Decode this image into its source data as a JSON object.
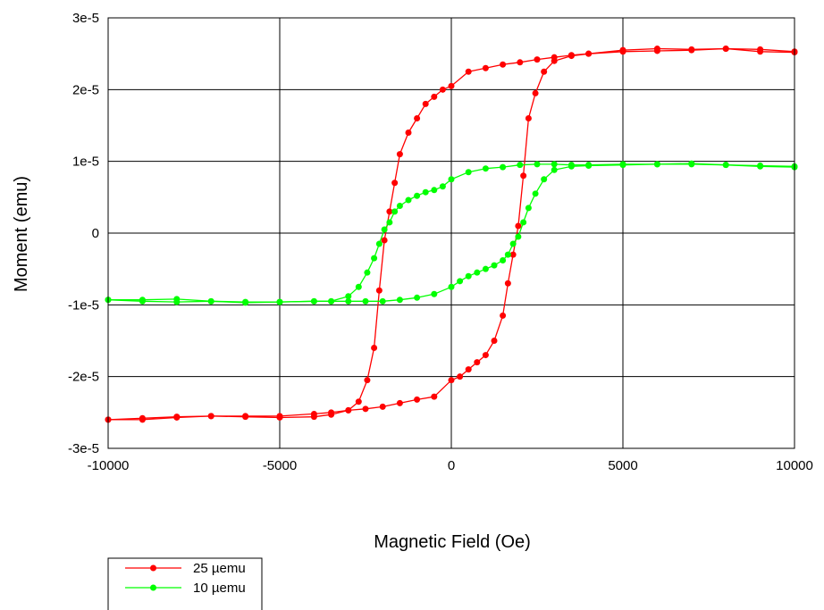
{
  "chart_data": {
    "type": "line",
    "title": "",
    "xlabel": "Magnetic Field (Oe)",
    "ylabel": "Moment (emu)",
    "xlim": [
      -10000,
      10000
    ],
    "ylim": [
      -3e-05,
      3e-05
    ],
    "x_ticks": [
      -10000,
      -5000,
      0,
      5000,
      10000
    ],
    "x_tick_labels": [
      "-10000",
      "-5000",
      "0",
      "5000",
      "10000"
    ],
    "y_ticks": [
      -3e-05,
      -2e-05,
      -1e-05,
      0,
      1e-05,
      2e-05,
      3e-05
    ],
    "y_tick_labels": [
      "-3e-5",
      "-2e-5",
      "-1e-5",
      "0",
      "1e-5",
      "2e-5",
      "3e-5"
    ],
    "grid": true,
    "legend_position": "below-left",
    "series": [
      {
        "name": "25 µemu",
        "color": "#ff0000",
        "descending": {
          "x": [
            10000,
            9000,
            8000,
            7000,
            6000,
            5000,
            4000,
            3500,
            3000,
            2500,
            2000,
            1500,
            1000,
            500,
            0,
            -250,
            -500,
            -750,
            -1000,
            -1250,
            -1500,
            -1650,
            -1800,
            -1950,
            -2100,
            -2250,
            -2450,
            -2700,
            -3000,
            -3500,
            -4000,
            -5000,
            -6000,
            -7000,
            -8000,
            -9000,
            -10000
          ],
          "y": [
            2.53e-05,
            2.56e-05,
            2.57e-05,
            2.55e-05,
            2.54e-05,
            2.53e-05,
            2.5e-05,
            2.48e-05,
            2.45e-05,
            2.42e-05,
            2.38e-05,
            2.35e-05,
            2.3e-05,
            2.25e-05,
            2.05e-05,
            2e-05,
            1.9e-05,
            1.8e-05,
            1.6e-05,
            1.4e-05,
            1.1e-05,
            7e-06,
            3e-06,
            -1e-06,
            -8e-06,
            -1.6e-05,
            -2.05e-05,
            -2.35e-05,
            -2.47e-05,
            -2.53e-05,
            -2.56e-05,
            -2.57e-05,
            -2.56e-05,
            -2.55e-05,
            -2.57e-05,
            -2.6e-05,
            -2.6e-05
          ]
        },
        "ascending": {
          "x": [
            -10000,
            -9000,
            -8000,
            -7000,
            -6000,
            -5000,
            -4000,
            -3500,
            -3000,
            -2500,
            -2000,
            -1500,
            -1000,
            -500,
            0,
            250,
            500,
            750,
            1000,
            1250,
            1500,
            1650,
            1800,
            1950,
            2100,
            2250,
            2450,
            2700,
            3000,
            3500,
            4000,
            5000,
            6000,
            7000,
            8000,
            9000,
            10000
          ],
          "y": [
            -2.6e-05,
            -2.58e-05,
            -2.56e-05,
            -2.55e-05,
            -2.55e-05,
            -2.55e-05,
            -2.52e-05,
            -2.5e-05,
            -2.47e-05,
            -2.45e-05,
            -2.42e-05,
            -2.37e-05,
            -2.32e-05,
            -2.28e-05,
            -2.05e-05,
            -2e-05,
            -1.9e-05,
            -1.8e-05,
            -1.7e-05,
            -1.5e-05,
            -1.15e-05,
            -7e-06,
            -3e-06,
            1e-06,
            8e-06,
            1.6e-05,
            1.95e-05,
            2.25e-05,
            2.4e-05,
            2.47e-05,
            2.5e-05,
            2.55e-05,
            2.57e-05,
            2.56e-05,
            2.57e-05,
            2.53e-05,
            2.52e-05
          ]
        }
      },
      {
        "name": "10 µemu",
        "color": "#00ff00",
        "descending": {
          "x": [
            10000,
            9000,
            8000,
            7000,
            6000,
            5000,
            4000,
            3500,
            3000,
            2500,
            2000,
            1500,
            1000,
            500,
            0,
            -250,
            -500,
            -750,
            -1000,
            -1250,
            -1500,
            -1650,
            -1800,
            -1950,
            -2100,
            -2250,
            -2450,
            -2700,
            -3000,
            -3500,
            -4000,
            -5000,
            -6000,
            -7000,
            -8000,
            -9000,
            -10000
          ],
          "y": [
            9.2e-06,
            9.3e-06,
            9.5e-06,
            9.7e-06,
            9.6e-06,
            9.6e-06,
            9.5e-06,
            9.5e-06,
            9.6e-06,
            9.6e-06,
            9.5e-06,
            9.2e-06,
            9e-06,
            8.5e-06,
            7.5e-06,
            6.5e-06,
            6e-06,
            5.7e-06,
            5.2e-06,
            4.6e-06,
            3.8e-06,
            3e-06,
            1.5e-06,
            5e-07,
            -1.5e-06,
            -3.5e-06,
            -5.5e-06,
            -7.5e-06,
            -8.8e-06,
            -9.5e-06,
            -9.5e-06,
            -9.6e-06,
            -9.7e-06,
            -9.5e-06,
            -9.2e-06,
            -9.3e-06,
            -9.3e-06
          ]
        },
        "ascending": {
          "x": [
            -10000,
            -9000,
            -8000,
            -7000,
            -6000,
            -5000,
            -4000,
            -3500,
            -3000,
            -2500,
            -2000,
            -1500,
            -1000,
            -500,
            0,
            250,
            500,
            750,
            1000,
            1250,
            1500,
            1650,
            1800,
            1950,
            2100,
            2250,
            2450,
            2700,
            3000,
            3500,
            4000,
            5000,
            6000,
            7000,
            8000,
            9000,
            10000
          ],
          "y": [
            -9.3e-06,
            -9.5e-06,
            -9.6e-06,
            -9.5e-06,
            -9.6e-06,
            -9.6e-06,
            -9.5e-06,
            -9.5e-06,
            -9.5e-06,
            -9.5e-06,
            -9.5e-06,
            -9.3e-06,
            -9e-06,
            -8.5e-06,
            -7.5e-06,
            -6.7e-06,
            -6e-06,
            -5.5e-06,
            -5e-06,
            -4.5e-06,
            -3.8e-06,
            -3e-06,
            -1.5e-06,
            -5e-07,
            1.5e-06,
            3.5e-06,
            5.5e-06,
            7.5e-06,
            8.8e-06,
            9.3e-06,
            9.4e-06,
            9.5e-06,
            9.6e-06,
            9.6e-06,
            9.5e-06,
            9.4e-06,
            9.3e-06
          ]
        }
      }
    ]
  }
}
